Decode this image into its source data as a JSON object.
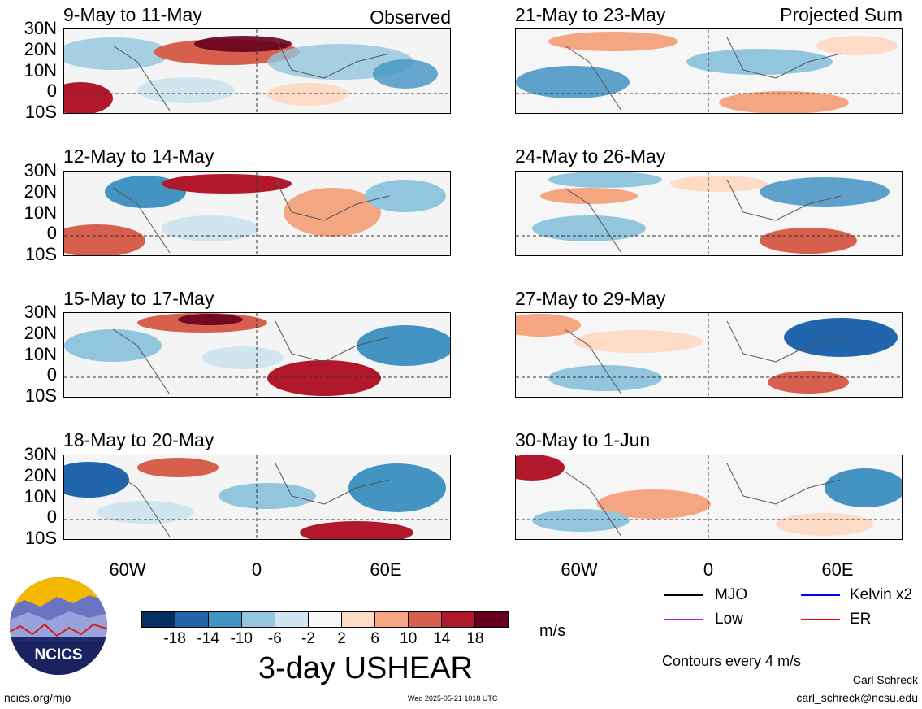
{
  "panels": {
    "observed": [
      {
        "title": "9-May to 11-May",
        "tag": "Observed"
      },
      {
        "title": "12-May to 14-May",
        "tag": ""
      },
      {
        "title": "15-May to 17-May",
        "tag": ""
      },
      {
        "title": "18-May to 20-May",
        "tag": ""
      }
    ],
    "projected": [
      {
        "title": "21-May to 23-May",
        "tag": "Projected Sum"
      },
      {
        "title": "24-May to 26-May",
        "tag": ""
      },
      {
        "title": "27-May to 29-May",
        "tag": ""
      },
      {
        "title": "30-May to 1-Jun",
        "tag": ""
      }
    ]
  },
  "lat_labels": [
    "30N",
    "20N",
    "10N",
    "0",
    "10S"
  ],
  "lon_labels": [
    "60W",
    "0",
    "60E"
  ],
  "colorbar": {
    "title": "3-day USHEAR",
    "units": "m/s",
    "ticks": [
      "-18",
      "-14",
      "-10",
      "-6",
      "-2",
      "2",
      "6",
      "10",
      "14",
      "18"
    ],
    "colors": [
      "#062f61",
      "#2166ac",
      "#4393c3",
      "#92c5de",
      "#d1e5f0",
      "#f7f7f7",
      "#fddbc7",
      "#f4a582",
      "#d6604d",
      "#b2182b",
      "#67001f"
    ]
  },
  "legend": {
    "items": [
      {
        "label": "MJO",
        "color": "#000000"
      },
      {
        "label": "Kelvin x2",
        "color": "#0000ff"
      },
      {
        "label": "Low",
        "color": "#a020f0"
      },
      {
        "label": "ER",
        "color": "#ff0000"
      }
    ],
    "contour_note": "Contours every 4 m/s"
  },
  "footer": {
    "logo_text": "NCICS",
    "site": "ncics.org/mjo",
    "timestamp": "Wed 2025-05-21 1018 UTC",
    "author": "Carl Schreck",
    "email": "carl_schreck@ncsu.edu"
  }
}
